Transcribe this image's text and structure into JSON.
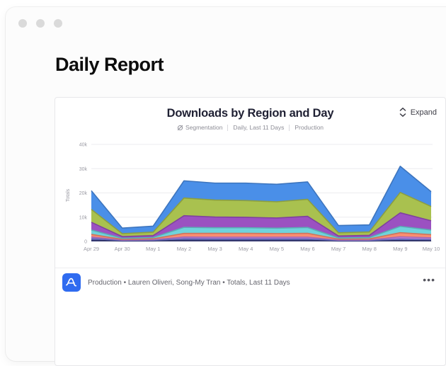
{
  "window": {
    "title": "Daily Report"
  },
  "card": {
    "title": "Downloads by Region and Day",
    "expand_label": "Expand",
    "subtitle": {
      "segmentation": "Segmentation",
      "range": "Daily, Last 11 Days",
      "environment": "Production"
    },
    "footer": {
      "text": "Production • Lauren Oliveri, Song-My Tran • Totals, Last 11 Days",
      "more_label": "•••"
    }
  },
  "colors": {
    "accent_blue": "#2f6bf0",
    "grid": "#ececef",
    "axis_text": "#9b9ba4"
  },
  "chart_data": {
    "type": "area",
    "stacked": true,
    "title": "Downloads by Region and Day",
    "ylabel": "Totals",
    "xlabel": "",
    "grid": true,
    "legend_visible": false,
    "ylim": [
      0,
      40000
    ],
    "y_ticks": [
      0,
      10000,
      20000,
      30000,
      40000
    ],
    "y_tick_labels": [
      "0",
      "10k",
      "20k",
      "30k",
      "40k"
    ],
    "x": [
      "Apr 29",
      "Apr 30",
      "May 1",
      "May 2",
      "May 3",
      "May 4",
      "May 5",
      "May 6",
      "May 7",
      "May 8",
      "May 9",
      "May 10"
    ],
    "series": [
      {
        "name": "navy",
        "color": "#3A3F7E",
        "values": [
          500,
          150,
          200,
          500,
          450,
          450,
          450,
          450,
          150,
          150,
          400,
          300
        ]
      },
      {
        "name": "periwinkle",
        "color": "#7B80E3",
        "values": [
          700,
          200,
          250,
          600,
          600,
          600,
          600,
          600,
          200,
          200,
          600,
          500
        ]
      },
      {
        "name": "orchid",
        "color": "#C77FD9",
        "values": [
          600,
          200,
          250,
          700,
          700,
          700,
          700,
          700,
          200,
          250,
          900,
          700
        ]
      },
      {
        "name": "salmon",
        "color": "#FA8D70",
        "values": [
          1100,
          300,
          400,
          1500,
          1600,
          1600,
          1500,
          1600,
          400,
          450,
          1700,
          1300
        ]
      },
      {
        "name": "cyan",
        "color": "#6FD3DC",
        "values": [
          1800,
          450,
          500,
          2500,
          2300,
          2300,
          2200,
          2400,
          500,
          550,
          2600,
          1900
        ]
      },
      {
        "name": "purple",
        "color": "#9B51C1",
        "values": [
          3200,
          700,
          800,
          4800,
          4400,
          4300,
          4200,
          4600,
          800,
          900,
          5600,
          3800
        ]
      },
      {
        "name": "olive",
        "color": "#A9C14F",
        "values": [
          5300,
          1200,
          1400,
          7300,
          7000,
          6900,
          6700,
          7000,
          1300,
          1400,
          8400,
          5900
        ]
      },
      {
        "name": "blue",
        "color": "#4A8FE8",
        "values": [
          7700,
          2300,
          2500,
          7100,
          7000,
          7200,
          7200,
          7200,
          3000,
          2900,
          10800,
          6100
        ]
      }
    ]
  }
}
